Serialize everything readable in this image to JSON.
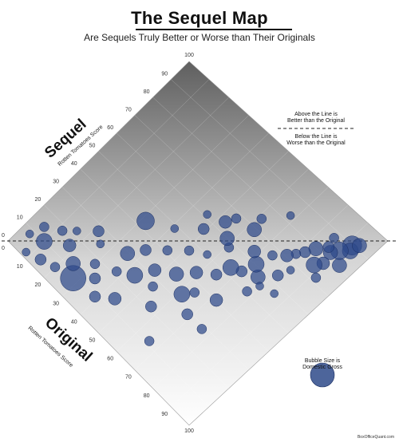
{
  "header": {
    "title": "The Sequel Map",
    "subtitle": "Are Sequels Truly Better or Worse than Their Originals"
  },
  "labels": {
    "sequel_big": "Sequel",
    "sequel_small": "Rotten Tomatoes Score",
    "original_big": "Original",
    "original_small": "Rotten Tomatoes Score",
    "above_line_1": "Above the Line is",
    "above_line_2": "Better than the Original",
    "below_line_1": "Below the Line is",
    "below_line_2": "Worse than the Original",
    "bubble_1": "Bubble Size is",
    "bubble_2": "Domestic Gross",
    "credit": "BoxOfficeQuant.com"
  },
  "colors": {
    "bubble": "#2e4a8a",
    "bubble_edge": "#1b2f63",
    "grad_top": "#5f5f5f",
    "grad_bottom": "#ffffff"
  },
  "chart_data": {
    "type": "scatter",
    "title": "The Sequel Map",
    "subtitle": "Are Sequels Truly Better or Worse than Their Originals",
    "xlabel": "Original Rotten Tomatoes Score",
    "ylabel": "Sequel Rotten Tomatoes Score",
    "xlim": [
      0,
      100
    ],
    "ylim": [
      0,
      100
    ],
    "sequel_ticks": [
      "0",
      "10",
      "20",
      "30",
      "40",
      "50",
      "60",
      "70",
      "80",
      "90",
      "100"
    ],
    "original_ticks": [
      "0",
      "10",
      "20",
      "30",
      "40",
      "50",
      "60",
      "70",
      "80",
      "90",
      "100"
    ],
    "reference_line": "sequel = original",
    "bubble_size": "Domestic Gross",
    "points": [
      {
        "x": 97,
        "y": 86,
        "s": 9
      },
      {
        "x": 95,
        "y": 95,
        "s": 12
      },
      {
        "x": 96,
        "y": 93,
        "s": 10
      },
      {
        "x": 93,
        "y": 90,
        "s": 11
      },
      {
        "x": 91,
        "y": 87,
        "s": 9
      },
      {
        "x": 92,
        "y": 82,
        "s": 8
      },
      {
        "x": 89,
        "y": 88,
        "s": 7
      },
      {
        "x": 94,
        "y": 76,
        "s": 6
      },
      {
        "x": 90,
        "y": 79,
        "s": 10
      },
      {
        "x": 86,
        "y": 84,
        "s": 9
      },
      {
        "x": 84,
        "y": 80,
        "s": 7
      },
      {
        "x": 82,
        "y": 77,
        "s": 6
      },
      {
        "x": 80,
        "y": 74,
        "s": 8
      },
      {
        "x": 85,
        "y": 71,
        "s": 5
      },
      {
        "x": 83,
        "y": 66,
        "s": 7
      },
      {
        "x": 76,
        "y": 70,
        "s": 6
      },
      {
        "x": 78,
        "y": 60,
        "s": 9
      },
      {
        "x": 74,
        "y": 63,
        "s": 10
      },
      {
        "x": 72,
        "y": 57,
        "s": 7
      },
      {
        "x": 79,
        "y": 53,
        "s": 6
      },
      {
        "x": 70,
        "y": 66,
        "s": 8
      },
      {
        "x": 68,
        "y": 55,
        "s": 10
      },
      {
        "x": 66,
        "y": 49,
        "s": 7
      },
      {
        "x": 64,
        "y": 72,
        "s": 9
      },
      {
        "x": 62,
        "y": 60,
        "s": 6
      },
      {
        "x": 60,
        "y": 44,
        "s": 8
      },
      {
        "x": 58,
        "y": 52,
        "s": 5
      },
      {
        "x": 56,
        "y": 70,
        "s": 6
      },
      {
        "x": 55,
        "y": 38,
        "s": 9
      },
      {
        "x": 52,
        "y": 48,
        "s": 6
      },
      {
        "x": 50,
        "y": 58,
        "s": 7
      },
      {
        "x": 48,
        "y": 33,
        "s": 8
      },
      {
        "x": 46,
        "y": 42,
        "s": 6
      },
      {
        "x": 44,
        "y": 26,
        "s": 10
      },
      {
        "x": 42,
        "y": 50,
        "s": 5
      },
      {
        "x": 40,
        "y": 36,
        "s": 7
      },
      {
        "x": 38,
        "y": 22,
        "s": 6
      },
      {
        "x": 36,
        "y": 30,
        "s": 9
      },
      {
        "x": 34,
        "y": 14,
        "s": 7
      },
      {
        "x": 32,
        "y": 44,
        "s": 11
      },
      {
        "x": 30,
        "y": 18,
        "s": 6
      },
      {
        "x": 28,
        "y": 8,
        "s": 16
      },
      {
        "x": 26,
        "y": 25,
        "s": 5
      },
      {
        "x": 24,
        "y": 12,
        "s": 9
      },
      {
        "x": 22,
        "y": 28,
        "s": 7
      },
      {
        "x": 20,
        "y": 6,
        "s": 6
      },
      {
        "x": 18,
        "y": 16,
        "s": 8
      },
      {
        "x": 16,
        "y": 22,
        "s": 5
      },
      {
        "x": 14,
        "y": 4,
        "s": 7
      },
      {
        "x": 12,
        "y": 18,
        "s": 6
      },
      {
        "x": 10,
        "y": 10,
        "s": 10
      },
      {
        "x": 8,
        "y": 2,
        "s": 5
      },
      {
        "x": 6,
        "y": 14,
        "s": 6
      },
      {
        "x": 4,
        "y": 8,
        "s": 5
      },
      {
        "x": 88,
        "y": 92,
        "s": 6
      },
      {
        "x": 97,
        "y": 97,
        "s": 9
      },
      {
        "x": 70,
        "y": 86,
        "s": 5
      },
      {
        "x": 63,
        "y": 77,
        "s": 6
      },
      {
        "x": 47,
        "y": 63,
        "s": 5
      },
      {
        "x": 54,
        "y": 66,
        "s": 8
      },
      {
        "x": 69,
        "y": 30,
        "s": 7
      },
      {
        "x": 62,
        "y": 34,
        "s": 10
      },
      {
        "x": 57,
        "y": 22,
        "s": 7
      },
      {
        "x": 66,
        "y": 12,
        "s": 6
      },
      {
        "x": 73,
        "y": 42,
        "s": 8
      },
      {
        "x": 77,
        "y": 30,
        "s": 6
      },
      {
        "x": 81,
        "y": 58,
        "s": 5
      },
      {
        "x": 65,
        "y": 38,
        "s": 6
      },
      {
        "x": 52,
        "y": 28,
        "s": 6
      },
      {
        "x": 45,
        "y": 14,
        "s": 8
      },
      {
        "x": 39,
        "y": 9,
        "s": 7
      },
      {
        "x": 59,
        "y": 62,
        "s": 9
      },
      {
        "x": 87,
        "y": 60,
        "s": 5
      }
    ]
  }
}
